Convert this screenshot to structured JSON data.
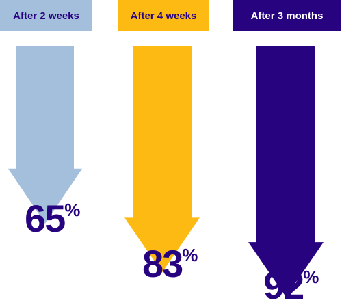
{
  "chart_data": {
    "type": "bar",
    "orientation": "downward-arrows",
    "categories": [
      "After 2 weeks",
      "After 4 weeks",
      "After 3 months"
    ],
    "values": [
      65,
      83,
      92
    ],
    "value_suffix": "%",
    "ylim": [
      0,
      100
    ],
    "grid": false,
    "legend": "none"
  },
  "colors": {
    "light_blue": "#a3bfdb",
    "yellow": "#fcba13",
    "navy": "#27037f",
    "header_text_dark": "#27037f",
    "header_text_light": "#ffffff"
  },
  "labels": {
    "after_2_weeks": "After 2 weeks",
    "after_4_weeks": "After 4 weeks",
    "after_3_months": "After 3 months",
    "value_65": "65",
    "value_83": "83",
    "value_92": "92",
    "percent": "%"
  }
}
